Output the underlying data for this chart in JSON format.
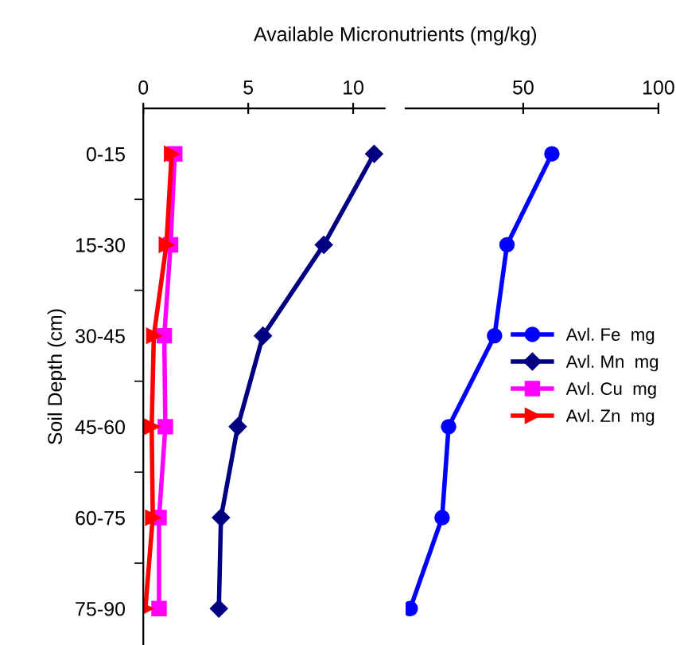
{
  "chart_data": [
    {
      "type": "line",
      "orientation": "horizontal",
      "xlabel": "Available Micronutrients (mg/kg)",
      "ylabel": "Soil Depth (cm)",
      "categories": [
        "0-15",
        "15-30",
        "30-45",
        "45-60",
        "60-75",
        "75-90"
      ],
      "xlim": [
        0,
        11.5
      ],
      "xticks": [
        0,
        5,
        10
      ],
      "series": [
        {
          "name": "Avl. Mn  mg",
          "color": "#000080",
          "marker": "diamond",
          "values": [
            11.0,
            8.6,
            5.7,
            4.5,
            3.7,
            3.6
          ]
        },
        {
          "name": "Avl. Cu  mg",
          "color": "#ff00ff",
          "marker": "square",
          "values": [
            1.5,
            1.3,
            1.0,
            1.05,
            0.75,
            0.75
          ]
        },
        {
          "name": "Avl. Zn  mg",
          "color": "#ff0000",
          "marker": "triangle",
          "values": [
            1.35,
            1.1,
            0.5,
            0.4,
            0.45,
            0.1
          ]
        }
      ],
      "legend": "right",
      "grid": false
    },
    {
      "type": "line",
      "orientation": "horizontal",
      "categories": [
        null,
        null,
        null,
        null,
        null,
        null
      ],
      "tick_labels": "x",
      "xlim": [
        6.5,
        100
      ],
      "xticks": [
        50,
        100
      ],
      "series": [
        {
          "name": "Avl. Fe  mg",
          "color": "#0000ff",
          "marker": "circle",
          "values": [
            60.6,
            44,
            39.4,
            22.4,
            20,
            8.2
          ]
        }
      ],
      "legend": "right",
      "grid": false
    }
  ]
}
